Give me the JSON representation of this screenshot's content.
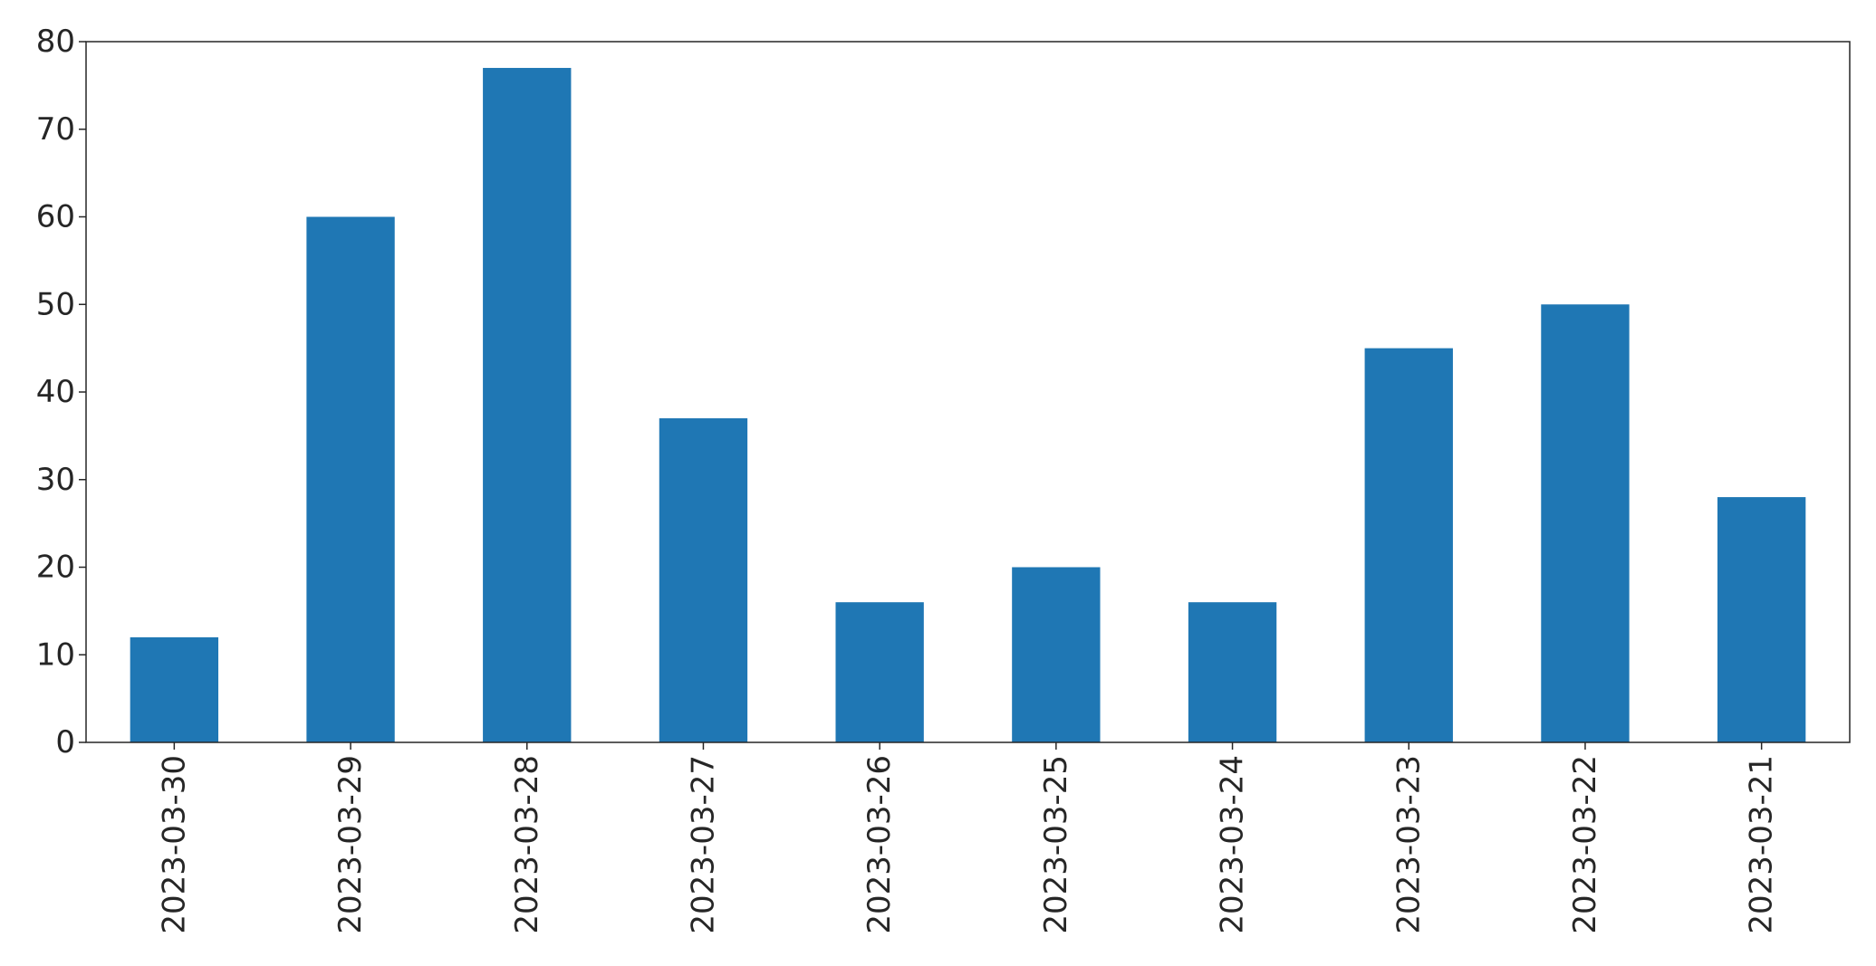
{
  "chart_data": {
    "type": "bar",
    "categories": [
      "2023-03-30",
      "2023-03-29",
      "2023-03-28",
      "2023-03-27",
      "2023-03-26",
      "2023-03-25",
      "2023-03-24",
      "2023-03-23",
      "2023-03-22",
      "2023-03-21"
    ],
    "values": [
      12,
      60,
      77,
      37,
      16,
      20,
      16,
      45,
      50,
      28
    ],
    "title": "",
    "xlabel": "",
    "ylabel": "",
    "ylim": [
      0,
      80
    ],
    "yticks": [
      0,
      10,
      20,
      30,
      40,
      50,
      60,
      70,
      80
    ],
    "grid": false,
    "legend": "none",
    "bar_color": "#1f77b4"
  }
}
